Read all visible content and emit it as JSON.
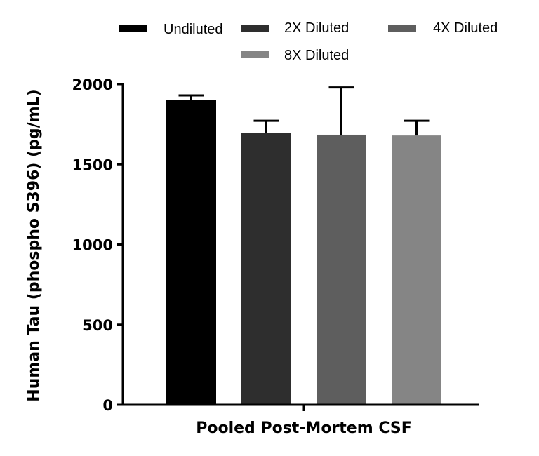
{
  "chart_data": {
    "type": "bar",
    "categories": [
      "Pooled Post-Mortem CSF"
    ],
    "series": [
      {
        "name": "Undiluted",
        "values": [
          1900
        ],
        "error": [
          30
        ],
        "color": "#000000"
      },
      {
        "name": "2X Diluted",
        "values": [
          1697
        ],
        "error": [
          75
        ],
        "color": "#2e2e2e"
      },
      {
        "name": "4X Diluted",
        "values": [
          1685
        ],
        "error": [
          295
        ],
        "color": "#5e5e5e"
      },
      {
        "name": "8X Diluted",
        "values": [
          1680
        ],
        "error": [
          92
        ],
        "color": "#858585"
      }
    ],
    "title": "",
    "xlabel": "Pooled Post-Mortem CSF",
    "ylabel": "Human Tau (phospho S396) (pg/mL)",
    "ylim": [
      0,
      2000
    ],
    "yticks": [
      0,
      500,
      1000,
      1500,
      2000
    ],
    "grid": false,
    "legend_position": "top"
  }
}
